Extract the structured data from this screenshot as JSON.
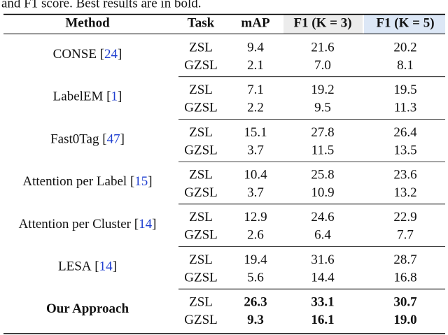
{
  "caption": "and F1 score. Best results are in bold.",
  "table": {
    "header": [
      "Method",
      "Task",
      "mAP",
      "F1 (K = 3)",
      "F1 (K = 5)"
    ],
    "rows": [
      {
        "method": {
          "name": "CONSE",
          "ref": [
            "[",
            "24",
            "]"
          ]
        },
        "tasks": [
          [
            "ZSL",
            "9.4",
            "21.6",
            "20.2"
          ],
          [
            "GZSL",
            "2.1",
            "7.0",
            "8.1"
          ]
        ]
      },
      {
        "method": {
          "name": "LabelEM",
          "ref": [
            "[",
            "1",
            "]"
          ]
        },
        "tasks": [
          [
            "ZSL",
            "7.1",
            "19.2",
            "19.5"
          ],
          [
            "GZSL",
            "2.2",
            "9.5",
            "11.3"
          ]
        ]
      },
      {
        "method": {
          "name": "Fast0Tag",
          "ref": [
            "[",
            "47",
            "]"
          ]
        },
        "tasks": [
          [
            "ZSL",
            "15.1",
            "27.8",
            "26.4"
          ],
          [
            "GZSL",
            "3.7",
            "11.5",
            "13.5"
          ]
        ]
      },
      {
        "method": {
          "name": "Attention per Label",
          "ref": [
            "[",
            "15",
            "]"
          ]
        },
        "tasks": [
          [
            "ZSL",
            "10.4",
            "25.8",
            "23.6"
          ],
          [
            "GZSL",
            "3.7",
            "10.9",
            "13.2"
          ]
        ]
      },
      {
        "method": {
          "name": "Attention per Cluster",
          "ref": [
            "[",
            "14",
            "]"
          ]
        },
        "tasks": [
          [
            "ZSL",
            "12.9",
            "24.6",
            "22.9"
          ],
          [
            "GZSL",
            "2.6",
            "6.4",
            "7.7"
          ]
        ]
      },
      {
        "method": {
          "name": "LESA",
          "ref": [
            "[",
            "14",
            "]"
          ]
        },
        "tasks": [
          [
            "ZSL",
            "19.4",
            "31.6",
            "28.7"
          ],
          [
            "GZSL",
            "5.6",
            "14.4",
            "16.8"
          ]
        ]
      },
      {
        "method": {
          "name": "Our Approach"
        },
        "best": true,
        "tasks": [
          [
            "ZSL",
            "26.3",
            "33.1",
            "30.7"
          ],
          [
            "GZSL",
            "9.3",
            "16.1",
            "19.0"
          ]
        ]
      }
    ]
  }
}
